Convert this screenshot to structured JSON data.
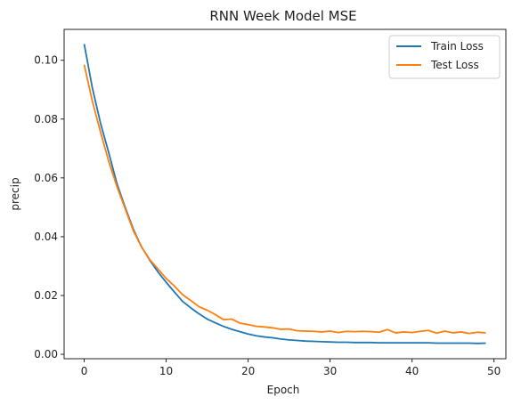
{
  "chart_data": {
    "type": "line",
    "title": "RNN Week Model MSE",
    "xlabel": "Epoch",
    "ylabel": "precip",
    "xlim": [
      -2.45,
      51.45
    ],
    "ylim": [
      -0.0015,
      0.1105
    ],
    "xticks": [
      0,
      10,
      20,
      30,
      40,
      50
    ],
    "yticks": [
      0.0,
      0.02,
      0.04,
      0.06,
      0.08,
      0.1
    ],
    "ytick_labels": [
      "0.00",
      "0.02",
      "0.04",
      "0.06",
      "0.08",
      "0.10"
    ],
    "grid": false,
    "legend_position": "top-right",
    "x": [
      0,
      1,
      2,
      3,
      4,
      5,
      6,
      7,
      8,
      9,
      10,
      11,
      12,
      13,
      14,
      15,
      16,
      17,
      18,
      19,
      20,
      21,
      22,
      23,
      24,
      25,
      26,
      27,
      28,
      29,
      30,
      31,
      32,
      33,
      34,
      35,
      36,
      37,
      38,
      39,
      40,
      41,
      42,
      43,
      44,
      45,
      46,
      47,
      48,
      49
    ],
    "series": [
      {
        "name": "Train Loss",
        "color": "#1f77b4",
        "values": [
          0.1055,
          0.0905,
          0.0785,
          0.0685,
          0.058,
          0.05,
          0.0425,
          0.0365,
          0.032,
          0.028,
          0.0245,
          0.0212,
          0.018,
          0.0158,
          0.0138,
          0.012,
          0.0107,
          0.0095,
          0.0085,
          0.0077,
          0.0069,
          0.0063,
          0.0059,
          0.0056,
          0.0052,
          0.0049,
          0.0047,
          0.0045,
          0.0044,
          0.0043,
          0.0042,
          0.0041,
          0.0041,
          0.004,
          0.004,
          0.004,
          0.0039,
          0.0039,
          0.0039,
          0.0039,
          0.0039,
          0.0039,
          0.0039,
          0.0038,
          0.0038,
          0.0038,
          0.0038,
          0.0038,
          0.0037,
          0.0038
        ]
      },
      {
        "name": "Test Loss",
        "color": "#ff7f0e",
        "values": [
          0.0985,
          0.086,
          0.0755,
          0.0655,
          0.057,
          0.0495,
          0.042,
          0.0365,
          0.0322,
          0.029,
          0.0258,
          0.0232,
          0.0203,
          0.0183,
          0.0162,
          0.015,
          0.0135,
          0.0118,
          0.012,
          0.0106,
          0.0101,
          0.0095,
          0.0093,
          0.009,
          0.0085,
          0.0086,
          0.008,
          0.0079,
          0.0078,
          0.0076,
          0.0079,
          0.0074,
          0.0078,
          0.0077,
          0.0078,
          0.0077,
          0.0075,
          0.0084,
          0.0073,
          0.0076,
          0.0074,
          0.0078,
          0.0081,
          0.0072,
          0.0079,
          0.0073,
          0.0076,
          0.0071,
          0.0075,
          0.0073
        ]
      }
    ]
  }
}
